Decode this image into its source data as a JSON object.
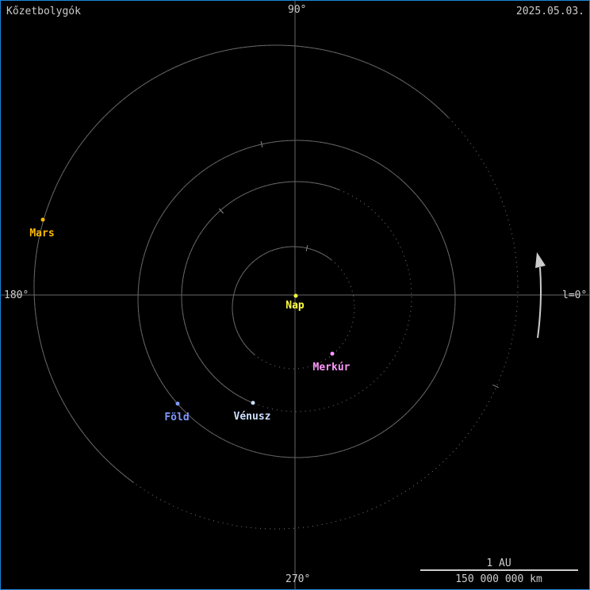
{
  "title": "Kőzetbolygók",
  "date": "2025.05.03.",
  "axis_labels": {
    "top": "90°",
    "left": "180°",
    "bottom": "270°",
    "right": "l=0°"
  },
  "scale": {
    "top": "1 AU",
    "bottom": "150 000 000 km"
  },
  "colors": {
    "border": "#1c86d6",
    "orbit": "#666666",
    "axis": "#666666",
    "text": "#cccccc"
  },
  "bodies": [
    {
      "name": "Nap",
      "color": "#ffff44"
    },
    {
      "name": "Merkúr",
      "color": "#ff99ff"
    },
    {
      "name": "Vénusz",
      "color": "#cce0ff"
    },
    {
      "name": "Föld",
      "color": "#7f99ff"
    },
    {
      "name": "Mars",
      "color": "#ffbb00"
    }
  ]
}
